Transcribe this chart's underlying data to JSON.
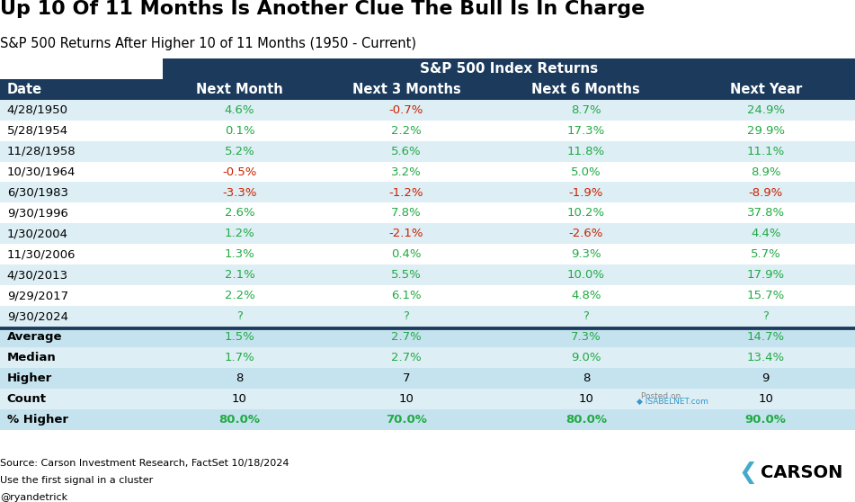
{
  "title": "Up 10 Of 11 Months Is Another Clue The Bull Is In Charge",
  "subtitle": "S&P 500 Returns After Higher 10 of 11 Months (1950 - Current)",
  "header_group": "S&P 500 Index Returns",
  "col_headers": [
    "Date",
    "Next Month",
    "Next 3 Months",
    "Next 6 Months",
    "Next Year"
  ],
  "rows": [
    [
      "4/28/1950",
      "4.6%",
      "-0.7%",
      "8.7%",
      "24.9%"
    ],
    [
      "5/28/1954",
      "0.1%",
      "2.2%",
      "17.3%",
      "29.9%"
    ],
    [
      "11/28/1958",
      "5.2%",
      "5.6%",
      "11.8%",
      "11.1%"
    ],
    [
      "10/30/1964",
      "-0.5%",
      "3.2%",
      "5.0%",
      "8.9%"
    ],
    [
      "6/30/1983",
      "-3.3%",
      "-1.2%",
      "-1.9%",
      "-8.9%"
    ],
    [
      "9/30/1996",
      "2.6%",
      "7.8%",
      "10.2%",
      "37.8%"
    ],
    [
      "1/30/2004",
      "1.2%",
      "-2.1%",
      "-2.6%",
      "4.4%"
    ],
    [
      "11/30/2006",
      "1.3%",
      "0.4%",
      "9.3%",
      "5.7%"
    ],
    [
      "4/30/2013",
      "2.1%",
      "5.5%",
      "10.0%",
      "17.9%"
    ],
    [
      "9/29/2017",
      "2.2%",
      "6.1%",
      "4.8%",
      "15.7%"
    ],
    [
      "9/30/2024",
      "?",
      "?",
      "?",
      "?"
    ]
  ],
  "stat_rows": [
    [
      "Average",
      "1.5%",
      "2.7%",
      "7.3%",
      "14.7%"
    ],
    [
      "Median",
      "1.7%",
      "2.7%",
      "9.0%",
      "13.4%"
    ],
    [
      "Higher",
      "8",
      "7",
      "8",
      "9"
    ],
    [
      "Count",
      "10",
      "10",
      "10",
      "10"
    ],
    [
      "% Higher",
      "80.0%",
      "70.0%",
      "80.0%",
      "90.0%"
    ]
  ],
  "source_line1": "Source: Carson Investment Research, FactSet 10/18/2024",
  "source_line2": "Use the first signal in a cluster",
  "source_line3": "@ryandetrick",
  "header_bg": "#1b3a5c",
  "col_header_bg": "#1b3a5c",
  "row_bg_light": "#ddeef5",
  "row_bg_white": "#ffffff",
  "stat_bg_light": "#c5e3ee",
  "stat_bg_white": "#ddeef5",
  "green_color": "#22aa44",
  "red_color": "#cc2200",
  "black_color": "#000000",
  "posted_on_color": "#888888",
  "isabelnet_color": "#3399cc"
}
